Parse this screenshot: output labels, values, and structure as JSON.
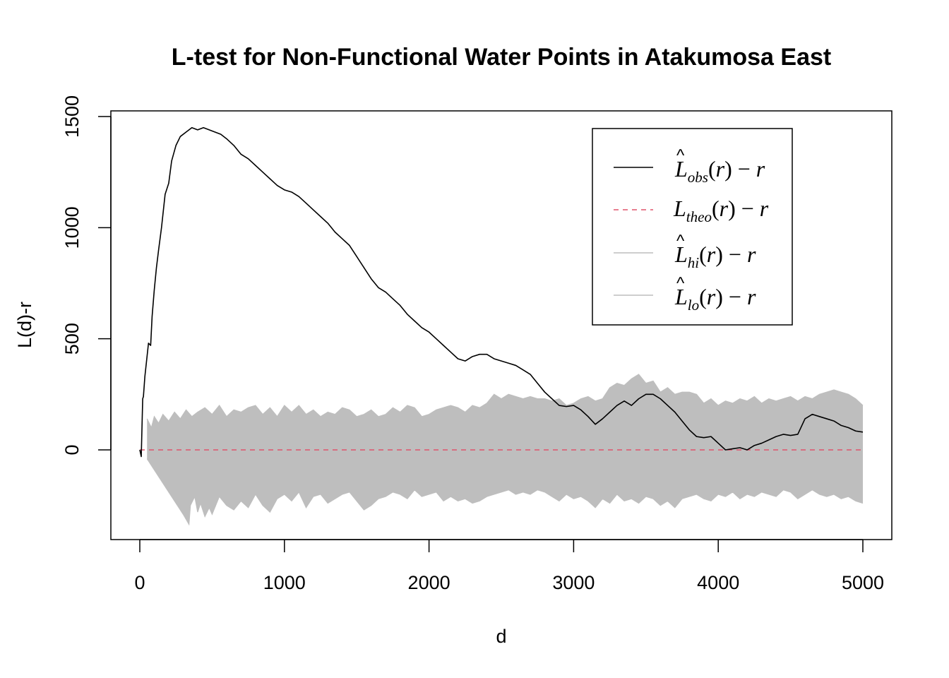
{
  "chart_data": {
    "type": "line",
    "title": "L-test for Non-Functional Water Points in Atakumosa East",
    "xlabel": "d",
    "ylabel": "L(d)-r",
    "xlim": [
      -200,
      5200
    ],
    "ylim": [
      -400,
      1530
    ],
    "x_ticks": [
      0,
      1000,
      2000,
      3000,
      4000,
      5000
    ],
    "y_ticks": [
      0,
      500,
      1000,
      1500
    ],
    "grid": false,
    "legend_position": "top-right",
    "series": [
      {
        "name": "L̂obs(r) − r",
        "color": "#000000",
        "style": "solid",
        "x": [
          0,
          10,
          20,
          25,
          35,
          50,
          60,
          75,
          85,
          100,
          115,
          130,
          150,
          175,
          200,
          220,
          250,
          280,
          320,
          360,
          400,
          440,
          480,
          520,
          560,
          600,
          650,
          700,
          750,
          800,
          850,
          900,
          950,
          1000,
          1050,
          1100,
          1150,
          1200,
          1250,
          1300,
          1350,
          1400,
          1450,
          1500,
          1550,
          1600,
          1650,
          1700,
          1750,
          1800,
          1850,
          1900,
          1950,
          2000,
          2050,
          2100,
          2150,
          2200,
          2250,
          2300,
          2350,
          2400,
          2450,
          2500,
          2550,
          2600,
          2650,
          2700,
          2750,
          2800,
          2850,
          2900,
          2950,
          3000,
          3050,
          3100,
          3150,
          3200,
          3250,
          3300,
          3350,
          3400,
          3450,
          3500,
          3550,
          3600,
          3650,
          3700,
          3750,
          3800,
          3850,
          3900,
          3950,
          4000,
          4050,
          4100,
          4150,
          4200,
          4250,
          4300,
          4350,
          4400,
          4450,
          4500,
          4550,
          4600,
          4650,
          4700,
          4750,
          4800,
          4850,
          4900,
          4950,
          5000
        ],
        "values": [
          0,
          -30,
          230,
          240,
          330,
          420,
          480,
          470,
          600,
          720,
          820,
          900,
          1000,
          1150,
          1200,
          1300,
          1370,
          1410,
          1430,
          1450,
          1440,
          1450,
          1440,
          1430,
          1420,
          1400,
          1370,
          1330,
          1310,
          1280,
          1250,
          1220,
          1190,
          1170,
          1160,
          1140,
          1110,
          1080,
          1050,
          1020,
          980,
          950,
          920,
          870,
          820,
          770,
          730,
          710,
          680,
          650,
          610,
          580,
          550,
          530,
          500,
          470,
          440,
          410,
          400,
          420,
          430,
          430,
          410,
          400,
          390,
          380,
          360,
          340,
          300,
          260,
          230,
          200,
          195,
          200,
          180,
          150,
          115,
          140,
          170,
          200,
          220,
          200,
          230,
          250,
          250,
          230,
          200,
          170,
          130,
          90,
          60,
          55,
          60,
          30,
          0,
          5,
          10,
          0,
          20,
          30,
          45,
          60,
          70,
          65,
          70,
          140,
          160,
          150,
          140,
          130,
          110,
          100,
          85,
          80
        ]
      },
      {
        "name": "Ltheo(r) − r",
        "color": "#DF536B",
        "style": "dashed",
        "x": [
          0,
          5000
        ],
        "values": [
          0,
          0
        ]
      },
      {
        "name": "L̂hi(r) − r",
        "color": "#BEBEBE",
        "style": "solid",
        "x": [
          50,
          80,
          100,
          130,
          160,
          200,
          240,
          280,
          320,
          360,
          400,
          450,
          500,
          550,
          600,
          650,
          700,
          750,
          800,
          850,
          900,
          950,
          1000,
          1050,
          1100,
          1150,
          1200,
          1250,
          1300,
          1350,
          1400,
          1450,
          1500,
          1550,
          1600,
          1650,
          1700,
          1750,
          1800,
          1850,
          1900,
          1950,
          2000,
          2050,
          2100,
          2150,
          2200,
          2250,
          2300,
          2350,
          2400,
          2450,
          2500,
          2550,
          2600,
          2650,
          2700,
          2750,
          2800,
          2850,
          2900,
          2950,
          3000,
          3050,
          3100,
          3150,
          3200,
          3250,
          3300,
          3350,
          3400,
          3450,
          3500,
          3550,
          3600,
          3650,
          3700,
          3750,
          3800,
          3850,
          3900,
          3950,
          4000,
          4050,
          4100,
          4150,
          4200,
          4250,
          4300,
          4350,
          4400,
          4450,
          4500,
          4550,
          4600,
          4650,
          4700,
          4750,
          4800,
          4850,
          4900,
          4950,
          5000
        ],
        "values": [
          140,
          100,
          150,
          120,
          160,
          130,
          170,
          140,
          180,
          150,
          170,
          190,
          160,
          200,
          150,
          180,
          170,
          190,
          200,
          160,
          190,
          150,
          200,
          170,
          200,
          160,
          180,
          150,
          170,
          160,
          190,
          180,
          150,
          160,
          180,
          150,
          160,
          190,
          170,
          200,
          190,
          150,
          160,
          180,
          190,
          200,
          190,
          170,
          200,
          190,
          210,
          250,
          230,
          250,
          240,
          230,
          240,
          230,
          230,
          220,
          230,
          200,
          210,
          230,
          240,
          220,
          230,
          280,
          300,
          290,
          320,
          340,
          300,
          310,
          260,
          280,
          250,
          260,
          260,
          250,
          210,
          230,
          200,
          220,
          210,
          230,
          220,
          240,
          210,
          230,
          220,
          230,
          240,
          220,
          240,
          230,
          250,
          260,
          270,
          260,
          250,
          230,
          200
        ]
      },
      {
        "name": "L̂lo(r) − r",
        "color": "#BEBEBE",
        "style": "solid",
        "x": [
          50,
          100,
          150,
          200,
          250,
          300,
          340,
          350,
          380,
          400,
          420,
          450,
          480,
          500,
          550,
          600,
          650,
          700,
          750,
          800,
          850,
          900,
          950,
          1000,
          1050,
          1100,
          1150,
          1200,
          1250,
          1300,
          1350,
          1400,
          1450,
          1500,
          1550,
          1600,
          1650,
          1700,
          1750,
          1800,
          1850,
          1900,
          1950,
          2000,
          2050,
          2100,
          2150,
          2200,
          2250,
          2300,
          2350,
          2400,
          2450,
          2500,
          2550,
          2600,
          2650,
          2700,
          2750,
          2800,
          2850,
          2900,
          2950,
          3000,
          3050,
          3100,
          3150,
          3200,
          3250,
          3300,
          3350,
          3400,
          3450,
          3500,
          3550,
          3600,
          3650,
          3700,
          3750,
          3800,
          3850,
          3900,
          3950,
          4000,
          4050,
          4100,
          4150,
          4200,
          4250,
          4300,
          4350,
          4400,
          4450,
          4500,
          4550,
          4600,
          4650,
          4700,
          4750,
          4800,
          4850,
          4900,
          4950,
          5000
        ],
        "values": [
          -40,
          -90,
          -140,
          -190,
          -240,
          -290,
          -335,
          -250,
          -210,
          -280,
          -240,
          -300,
          -260,
          -290,
          -210,
          -250,
          -270,
          -230,
          -260,
          -200,
          -250,
          -280,
          -220,
          -200,
          -230,
          -190,
          -260,
          -210,
          -200,
          -240,
          -220,
          -200,
          -190,
          -230,
          -270,
          -250,
          -220,
          -210,
          -190,
          -200,
          -220,
          -180,
          -210,
          -200,
          -190,
          -230,
          -210,
          -230,
          -220,
          -240,
          -230,
          -210,
          -200,
          -190,
          -180,
          -200,
          -190,
          -200,
          -180,
          -190,
          -210,
          -230,
          -200,
          -220,
          -210,
          -230,
          -260,
          -220,
          -240,
          -200,
          -230,
          -220,
          -240,
          -210,
          -220,
          -250,
          -230,
          -260,
          -220,
          -210,
          -200,
          -220,
          -230,
          -200,
          -210,
          -190,
          -220,
          -200,
          -210,
          -190,
          -200,
          -210,
          -180,
          -190,
          -220,
          -200,
          -180,
          -200,
          -210,
          -200,
          -220,
          -210,
          -230,
          -240
        ]
      }
    ]
  }
}
